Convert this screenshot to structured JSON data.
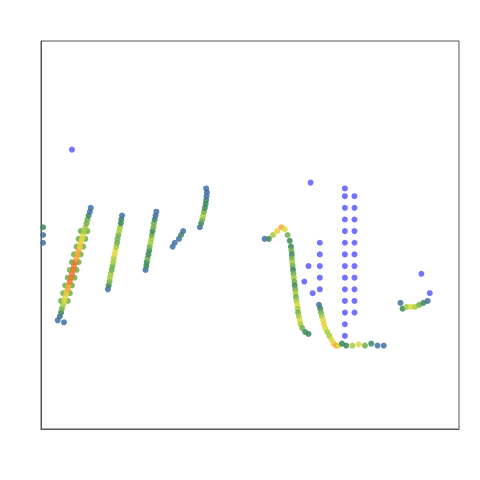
{
  "chart_data": {
    "type": "heatmap",
    "xlim": [
      0,
      100
    ],
    "ylim": [
      0,
      100
    ],
    "tick_labels": false,
    "grid": false,
    "zlim": [
      1,
      10
    ],
    "cells": [
      [
        4.8,
        33,
        4
      ],
      [
        6.4,
        33,
        4
      ],
      [
        5.3,
        35,
        4
      ],
      [
        6.9,
        35,
        4
      ],
      [
        5.8,
        37,
        4
      ],
      [
        7.4,
        37,
        4
      ],
      [
        6.4,
        39,
        4
      ],
      [
        8.0,
        39,
        4
      ],
      [
        6.9,
        41,
        4
      ],
      [
        8.5,
        41,
        4
      ],
      [
        7.4,
        43,
        4
      ],
      [
        9.0,
        43,
        4
      ],
      [
        7.9,
        45,
        4
      ],
      [
        9.5,
        45,
        4
      ],
      [
        8.5,
        47,
        4
      ],
      [
        10.1,
        47,
        4
      ],
      [
        9.0,
        49,
        4
      ],
      [
        10.6,
        49,
        4
      ],
      [
        9.5,
        51,
        4
      ],
      [
        11.1,
        51,
        4
      ],
      [
        4,
        28,
        2
      ],
      [
        5.5,
        27.5,
        2
      ],
      [
        4.5,
        29,
        2
      ],
      [
        4.8,
        30,
        3
      ],
      [
        5.0,
        31,
        4
      ],
      [
        5.3,
        32,
        5
      ],
      [
        5.6,
        33,
        6
      ],
      [
        5.8,
        34,
        6
      ],
      [
        6.1,
        35,
        7
      ],
      [
        6.4,
        36,
        8
      ],
      [
        6.6,
        37,
        8
      ],
      [
        6.9,
        38,
        9
      ],
      [
        7.2,
        39,
        9
      ],
      [
        7.4,
        40,
        9
      ],
      [
        7.7,
        41,
        9
      ],
      [
        7.9,
        42,
        9
      ],
      [
        8.2,
        43,
        9
      ],
      [
        8.5,
        44,
        8
      ],
      [
        8.7,
        45,
        8
      ],
      [
        9.0,
        46,
        8
      ],
      [
        9.3,
        47,
        7
      ],
      [
        9.5,
        48,
        7
      ],
      [
        9.8,
        49,
        6
      ],
      [
        10.1,
        50,
        6
      ],
      [
        10.3,
        51,
        5
      ],
      [
        10.6,
        52,
        5
      ],
      [
        10.9,
        53,
        4
      ],
      [
        11.1,
        54,
        4
      ],
      [
        11.4,
        55,
        3
      ],
      [
        11.7,
        56,
        2
      ],
      [
        11.9,
        57,
        2
      ],
      [
        0.5,
        48,
        2
      ],
      [
        0.5,
        50,
        2
      ],
      [
        0.5,
        52,
        3
      ],
      [
        16.0,
        36,
        2
      ],
      [
        16.2,
        37,
        3
      ],
      [
        16.4,
        38,
        4
      ],
      [
        16.5,
        39,
        5
      ],
      [
        16.7,
        40,
        5
      ],
      [
        16.9,
        41,
        4
      ],
      [
        17.1,
        42,
        4
      ],
      [
        17.3,
        43,
        5
      ],
      [
        17.4,
        44,
        5
      ],
      [
        17.6,
        45,
        6
      ],
      [
        17.8,
        46,
        6
      ],
      [
        18.0,
        47,
        5
      ],
      [
        18.2,
        48,
        4
      ],
      [
        18.3,
        49,
        4
      ],
      [
        18.5,
        50,
        4
      ],
      [
        18.7,
        51,
        5
      ],
      [
        18.9,
        52,
        5
      ],
      [
        19.1,
        53,
        3
      ],
      [
        19.2,
        54,
        3
      ],
      [
        19.4,
        55,
        2
      ],
      [
        25.0,
        41,
        2
      ],
      [
        25.2,
        42,
        3
      ],
      [
        25.3,
        43,
        3
      ],
      [
        25.5,
        44,
        4
      ],
      [
        25.7,
        45,
        3
      ],
      [
        25.9,
        46,
        3
      ],
      [
        26.0,
        47,
        4
      ],
      [
        26.2,
        48,
        5
      ],
      [
        26.4,
        49,
        5
      ],
      [
        26.5,
        50,
        4
      ],
      [
        26.7,
        51,
        3
      ],
      [
        26.9,
        52,
        4
      ],
      [
        27.0,
        53,
        4
      ],
      [
        27.2,
        54,
        3
      ],
      [
        27.4,
        55,
        2
      ],
      [
        27.6,
        56,
        2
      ],
      [
        31.5,
        47,
        2
      ],
      [
        32,
        48,
        2
      ],
      [
        33,
        49,
        2
      ],
      [
        33.5,
        50,
        3
      ],
      [
        34,
        51,
        2
      ],
      [
        38,
        52,
        2
      ],
      [
        38.3,
        53,
        3
      ],
      [
        38.6,
        54,
        4
      ],
      [
        38.8,
        55,
        5
      ],
      [
        39,
        56,
        4
      ],
      [
        39.2,
        57,
        3
      ],
      [
        39.4,
        58,
        3
      ],
      [
        39.5,
        59,
        3
      ],
      [
        39.6,
        60,
        2
      ],
      [
        39.7,
        61,
        2
      ],
      [
        39.5,
        62,
        2
      ],
      [
        7.4,
        72,
        1
      ],
      [
        64.5,
        63.5,
        1
      ],
      [
        72.7,
        24,
        1
      ],
      [
        72.7,
        27,
        1
      ],
      [
        72.7,
        30,
        1
      ],
      [
        72.7,
        33,
        1
      ],
      [
        72.7,
        36,
        1
      ],
      [
        72.7,
        39,
        1
      ],
      [
        72.7,
        42,
        1
      ],
      [
        72.7,
        45,
        1
      ],
      [
        72.7,
        48,
        1
      ],
      [
        72.7,
        51,
        1
      ],
      [
        72.7,
        54,
        1
      ],
      [
        72.7,
        57,
        1
      ],
      [
        72.7,
        60,
        1
      ],
      [
        72.7,
        62,
        1
      ],
      [
        75,
        30,
        1
      ],
      [
        75,
        33,
        1
      ],
      [
        75,
        36,
        1
      ],
      [
        75,
        39,
        1
      ],
      [
        75,
        42,
        1
      ],
      [
        75,
        45,
        1
      ],
      [
        75,
        48,
        1
      ],
      [
        75,
        51,
        1
      ],
      [
        75,
        54,
        1
      ],
      [
        75,
        57,
        1
      ],
      [
        75,
        60,
        1
      ],
      [
        66.7,
        36,
        1
      ],
      [
        66.7,
        39,
        1
      ],
      [
        66.7,
        42,
        1
      ],
      [
        66.7,
        45,
        1
      ],
      [
        66.7,
        48,
        1
      ],
      [
        63,
        38,
        1
      ],
      [
        64,
        42,
        1
      ],
      [
        65,
        35,
        1
      ],
      [
        93,
        35,
        1
      ],
      [
        91,
        40,
        1
      ],
      [
        53.5,
        49,
        2
      ],
      [
        54.5,
        49,
        3
      ],
      [
        55.5,
        50,
        5
      ],
      [
        56.5,
        51,
        7
      ],
      [
        57.5,
        52,
        8
      ],
      [
        58.3,
        51.5,
        6
      ],
      [
        59,
        50,
        4
      ],
      [
        59.5,
        48.5,
        3
      ],
      [
        59.8,
        47,
        3
      ],
      [
        59.9,
        46,
        4
      ],
      [
        60,
        45,
        3
      ],
      [
        60,
        44,
        4
      ],
      [
        60.1,
        43,
        5
      ],
      [
        60.2,
        42,
        4
      ],
      [
        60.3,
        41,
        3
      ],
      [
        60.4,
        40,
        4
      ],
      [
        60.5,
        39,
        5
      ],
      [
        60.6,
        38,
        4
      ],
      [
        60.7,
        37,
        3
      ],
      [
        60.8,
        36,
        4
      ],
      [
        60.9,
        35,
        5
      ],
      [
        61,
        34,
        4
      ],
      [
        61.1,
        33,
        5
      ],
      [
        61.3,
        32,
        6
      ],
      [
        61.4,
        31,
        5
      ],
      [
        61.5,
        30,
        4
      ],
      [
        61.7,
        29,
        5
      ],
      [
        61.9,
        28,
        6
      ],
      [
        62.1,
        27,
        5
      ],
      [
        62.5,
        26,
        4
      ],
      [
        63.2,
        25,
        3
      ],
      [
        64,
        24.5,
        3
      ],
      [
        66.5,
        32,
        2
      ],
      [
        66.8,
        31,
        3
      ],
      [
        67,
        30,
        4
      ],
      [
        67.2,
        29,
        5
      ],
      [
        67.5,
        28,
        6
      ],
      [
        67.7,
        27,
        7
      ],
      [
        68,
        26,
        6
      ],
      [
        68.5,
        25,
        5
      ],
      [
        69,
        24,
        5
      ],
      [
        69.5,
        23,
        6
      ],
      [
        70,
        22,
        7
      ],
      [
        70.6,
        21.5,
        8
      ],
      [
        71.2,
        21.5,
        6
      ],
      [
        72,
        22,
        3
      ],
      [
        73,
        21.5,
        3
      ],
      [
        74.5,
        21.5,
        5
      ],
      [
        76,
        21.8,
        6
      ],
      [
        77.5,
        21.5,
        4
      ],
      [
        79,
        22,
        3
      ],
      [
        80.5,
        21.5,
        2
      ],
      [
        82,
        21.5,
        2
      ],
      [
        86,
        32.5,
        2
      ],
      [
        86.5,
        31,
        3
      ],
      [
        87.5,
        31.5,
        5
      ],
      [
        88.5,
        31.5,
        6
      ],
      [
        89.5,
        31.5,
        5
      ],
      [
        90.5,
        32,
        4
      ],
      [
        91.5,
        32.5,
        3
      ],
      [
        92.5,
        33,
        2
      ]
    ]
  }
}
